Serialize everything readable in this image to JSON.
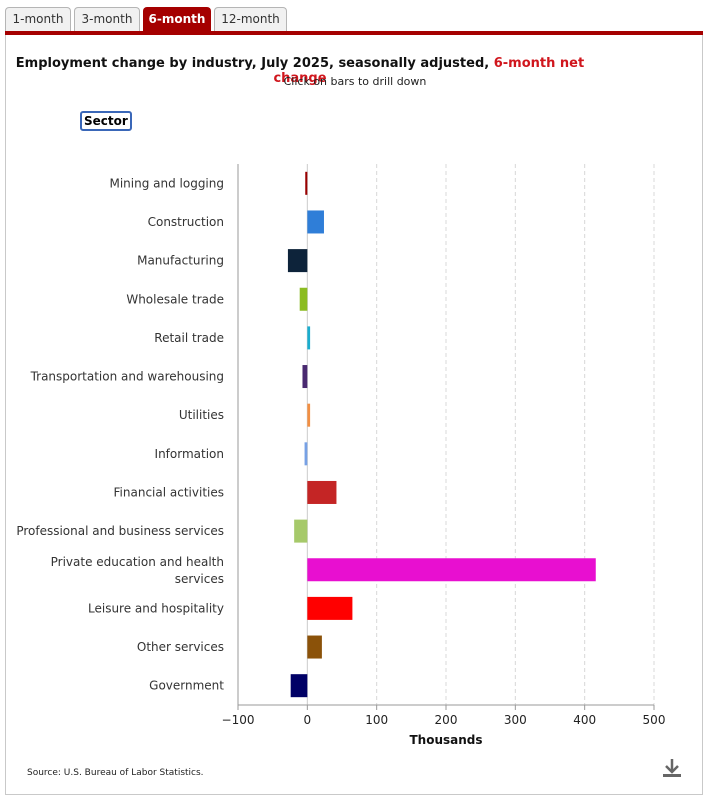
{
  "tabs": [
    {
      "label": "1-month",
      "active": false
    },
    {
      "label": "3-month",
      "active": false
    },
    {
      "label": "6-month",
      "active": true
    },
    {
      "label": "12-month",
      "active": false
    }
  ],
  "header": {
    "title_main": "Employment change by industry, July 2025, seasonally adjusted, ",
    "title_accent": "6-month net change",
    "subtitle": "Click on bars to drill down",
    "sector_button": "Sector"
  },
  "footer": {
    "source": "Source: U.S. Bureau of Labor Statistics.",
    "download_icon": "download-icon"
  },
  "colors": {
    "tab_accent": "#a50000",
    "title_accent": "#d0161d"
  },
  "chart_data": {
    "type": "bar",
    "orientation": "horizontal",
    "xlabel": "Thousands",
    "xlim": [
      -100,
      500
    ],
    "xticks": [
      -100,
      0,
      100,
      200,
      300,
      400,
      500
    ],
    "xtick_labels": [
      "−100",
      "0",
      "100",
      "200",
      "300",
      "400",
      "500"
    ],
    "grid": true,
    "categories": [
      "Mining and logging",
      "Construction",
      "Manufacturing",
      "Wholesale trade",
      "Retail trade",
      "Transportation and warehousing",
      "Utilities",
      "Information",
      "Financial activities",
      "Professional and business services",
      "Private education and health services",
      "Leisure and hospitality",
      "Other services",
      "Government"
    ],
    "values": [
      -3,
      24,
      -28,
      -11,
      4,
      -7,
      4,
      -4,
      42,
      -19,
      416,
      65,
      21,
      -24
    ],
    "bar_colors": [
      "#990000",
      "#2f7ed8",
      "#0d233a",
      "#8bbc21",
      "#1aadce",
      "#492970",
      "#f28f43",
      "#77a1e5",
      "#c42525",
      "#a6c96a",
      "#e80fd0",
      "#ff0000",
      "#8b5209",
      "#000066"
    ]
  }
}
